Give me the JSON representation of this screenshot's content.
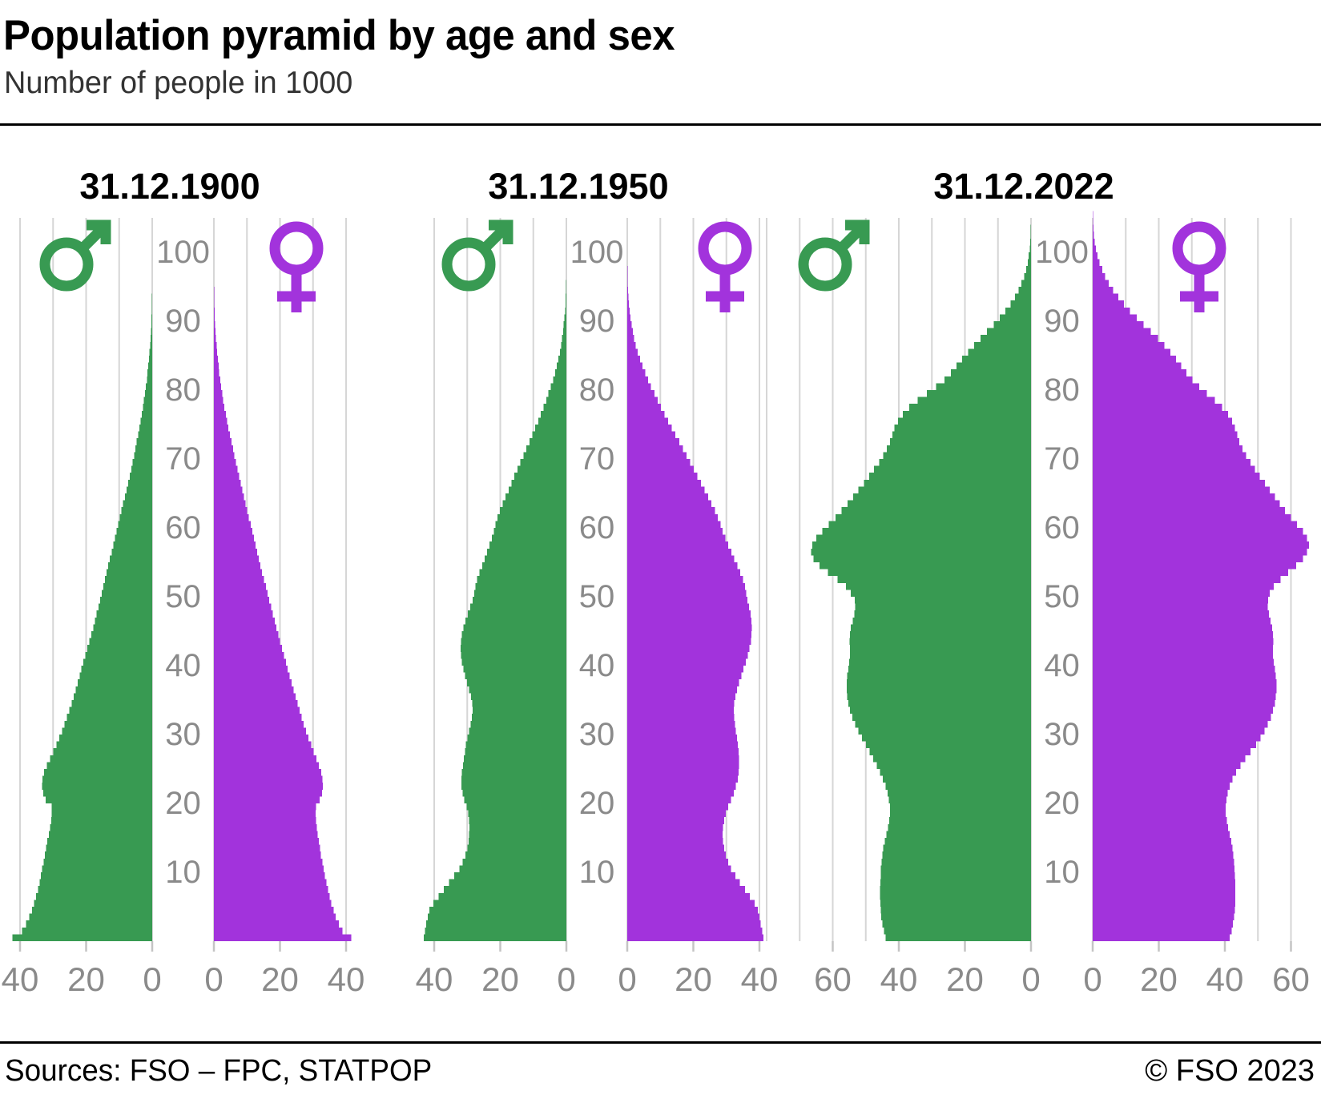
{
  "header": {
    "title": "Population pyramid by age and sex",
    "subtitle": "Number of people in 1000"
  },
  "footer": {
    "sources": "Sources: FSO – FPC, STATPOP",
    "copyright": "© FSO 2023"
  },
  "colors": {
    "male": "#389A52",
    "female": "#A233DC",
    "axis_label": "#8A8A8A",
    "gridline": "#D6D6D6",
    "tick": "#C4C4C4",
    "panel_title": "#000000"
  },
  "icons": {
    "male": "mars-symbol",
    "female": "venus-symbol"
  },
  "chart_data": [
    {
      "type": "bar",
      "subtype": "population-pyramid",
      "title": "31.12.1900",
      "unit": "thousands of people per single year of age",
      "age_range": [
        0,
        105
      ],
      "age_axis_ticks": [
        10,
        20,
        30,
        40,
        50,
        60,
        70,
        80,
        90,
        100
      ],
      "x_ticks_male": [
        40,
        20,
        0
      ],
      "x_ticks_female": [
        0,
        20,
        40
      ],
      "grid_step": 10,
      "grid_max_male": 40,
      "grid_max_female": 40,
      "series": [
        {
          "name": "male",
          "values": [
            42.3,
            39.4,
            38.2,
            37.2,
            36.4,
            35.7,
            35.1,
            34.6,
            34.1,
            33.7,
            33.3,
            32.9,
            32.5,
            32.1,
            31.7,
            31.3,
            30.9,
            30.6,
            30.4,
            30.4,
            32.2,
            33.0,
            33.3,
            33.2,
            32.7,
            31.9,
            30.9,
            29.9,
            29.0,
            28.1,
            27.3,
            26.5,
            25.8,
            25.1,
            24.4,
            23.8,
            23.2,
            22.6,
            22.0,
            21.4,
            20.8,
            20.2,
            19.6,
            19.0,
            18.4,
            17.8,
            17.3,
            16.8,
            16.3,
            15.8,
            15.3,
            14.8,
            14.3,
            13.8,
            13.3,
            12.8,
            12.3,
            11.8,
            11.3,
            10.8,
            10.3,
            9.8,
            9.3,
            8.8,
            8.3,
            7.8,
            7.3,
            6.8,
            6.3,
            5.9,
            5.5,
            5.1,
            4.7,
            4.3,
            3.9,
            3.5,
            3.1,
            2.8,
            2.5,
            2.2,
            1.9,
            1.6,
            1.4,
            1.2,
            1.0,
            0.8,
            0.6,
            0.5,
            0.4,
            0.3,
            0.2,
            0.15,
            0.1,
            0.07,
            0.05,
            0.03,
            0.02,
            0.01,
            0.01,
            0,
            0,
            0,
            0,
            0,
            0,
            0
          ]
        },
        {
          "name": "female",
          "values": [
            41.6,
            38.9,
            37.8,
            36.9,
            36.2,
            35.5,
            35.0,
            34.5,
            34.0,
            33.6,
            33.2,
            32.8,
            32.4,
            32.1,
            31.7,
            31.4,
            31.1,
            30.9,
            30.8,
            30.9,
            32.0,
            32.7,
            33.0,
            32.9,
            32.5,
            31.8,
            31.0,
            30.2,
            29.4,
            28.6,
            27.9,
            27.2,
            26.5,
            25.9,
            25.3,
            24.7,
            24.1,
            23.5,
            22.9,
            22.3,
            21.8,
            21.2,
            20.6,
            20.0,
            19.5,
            18.9,
            18.4,
            17.8,
            17.3,
            16.7,
            16.2,
            15.7,
            15.1,
            14.6,
            14.1,
            13.6,
            13.1,
            12.6,
            12.1,
            11.6,
            11.1,
            10.6,
            10.1,
            9.6,
            9.1,
            8.6,
            8.1,
            7.6,
            7.1,
            6.7,
            6.2,
            5.8,
            5.3,
            4.9,
            4.4,
            4.0,
            3.6,
            3.2,
            2.8,
            2.5,
            2.2,
            1.9,
            1.6,
            1.4,
            1.2,
            1.0,
            0.8,
            0.65,
            0.5,
            0.4,
            0.3,
            0.2,
            0.15,
            0.1,
            0.07,
            0.05,
            0.03,
            0.02,
            0.01,
            0.01,
            0,
            0,
            0,
            0,
            0,
            0
          ]
        }
      ]
    },
    {
      "type": "bar",
      "subtype": "population-pyramid",
      "title": "31.12.1950",
      "unit": "thousands of people per single year of age",
      "age_range": [
        0,
        105
      ],
      "age_axis_ticks": [
        10,
        20,
        30,
        40,
        50,
        60,
        70,
        80,
        90,
        100
      ],
      "x_ticks_male": [
        40,
        20,
        0
      ],
      "x_ticks_female": [
        0,
        20,
        40
      ],
      "grid_step": 10,
      "grid_max_male": 40,
      "grid_max_female": 40,
      "series": [
        {
          "name": "male",
          "values": [
            43.2,
            42.8,
            42.4,
            42.0,
            41.5,
            40.3,
            38.7,
            37.1,
            35.5,
            33.9,
            32.4,
            31.4,
            30.6,
            30.0,
            29.6,
            29.4,
            29.3,
            29.4,
            29.7,
            30.2,
            30.9,
            31.4,
            31.7,
            31.8,
            31.6,
            31.3,
            31.0,
            30.7,
            30.4,
            30.0,
            29.5,
            29.0,
            28.6,
            28.4,
            28.5,
            28.9,
            29.5,
            30.1,
            30.7,
            31.2,
            31.6,
            31.9,
            32.0,
            31.9,
            31.6,
            31.1,
            30.5,
            29.8,
            29.1,
            28.4,
            27.9,
            27.5,
            27.0,
            26.3,
            25.5,
            24.7,
            24.0,
            23.3,
            22.6,
            22.0,
            21.5,
            20.9,
            20.1,
            19.3,
            18.4,
            17.5,
            16.6,
            15.7,
            14.8,
            13.9,
            13.0,
            12.1,
            11.2,
            10.3,
            9.4,
            8.5,
            7.7,
            6.9,
            6.1,
            5.4,
            4.7,
            4.0,
            3.4,
            2.9,
            2.4,
            2.0,
            1.6,
            1.3,
            1.0,
            0.8,
            0.6,
            0.4,
            0.3,
            0.2,
            0.13,
            0.08,
            0.05,
            0.03,
            0.02,
            0.01,
            0,
            0,
            0,
            0,
            0,
            0
          ]
        },
        {
          "name": "female",
          "values": [
            41.2,
            40.8,
            40.4,
            40.0,
            39.5,
            38.5,
            37.1,
            35.6,
            34.1,
            32.7,
            31.4,
            30.5,
            29.8,
            29.3,
            29.0,
            28.9,
            29.0,
            29.3,
            29.8,
            30.5,
            31.4,
            32.2,
            32.9,
            33.4,
            33.7,
            33.8,
            33.8,
            33.7,
            33.5,
            33.2,
            32.9,
            32.6,
            32.4,
            32.3,
            32.4,
            32.7,
            33.2,
            33.8,
            34.5,
            35.2,
            35.9,
            36.5,
            37.0,
            37.4,
            37.6,
            37.7,
            37.6,
            37.3,
            36.9,
            36.4,
            36.0,
            35.6,
            35.0,
            34.2,
            33.3,
            32.4,
            31.5,
            30.6,
            29.7,
            28.9,
            28.2,
            27.4,
            26.5,
            25.5,
            24.5,
            23.4,
            22.3,
            21.2,
            20.1,
            19.0,
            17.9,
            16.8,
            15.7,
            14.6,
            13.5,
            12.4,
            11.3,
            10.2,
            9.2,
            8.2,
            7.2,
            6.3,
            5.4,
            4.6,
            3.9,
            3.2,
            2.6,
            2.1,
            1.7,
            1.3,
            1.0,
            0.7,
            0.5,
            0.35,
            0.25,
            0.15,
            0.1,
            0.06,
            0.03,
            0.02,
            0.01,
            0,
            0,
            0,
            0,
            0
          ]
        }
      ]
    },
    {
      "type": "bar",
      "subtype": "population-pyramid",
      "title": "31.12.2022",
      "unit": "thousands of people per single year of age",
      "age_range": [
        0,
        105
      ],
      "age_axis_ticks": [
        10,
        20,
        30,
        40,
        50,
        60,
        70,
        80,
        90,
        100
      ],
      "x_ticks_male": [
        60,
        40,
        20,
        0
      ],
      "x_ticks_female": [
        0,
        20,
        40,
        60
      ],
      "grid_step": 10,
      "grid_max_male": 80,
      "grid_max_female": 60,
      "series": [
        {
          "name": "male",
          "values": [
            44.0,
            44.5,
            45.0,
            45.3,
            45.5,
            45.6,
            45.7,
            45.7,
            45.6,
            45.5,
            45.4,
            45.2,
            45.0,
            44.7,
            44.3,
            43.8,
            43.3,
            42.9,
            42.7,
            42.7,
            43.0,
            43.4,
            44.0,
            44.8,
            45.7,
            46.7,
            47.8,
            48.9,
            50.0,
            51.1,
            52.2,
            53.2,
            54.1,
            54.8,
            55.3,
            55.6,
            55.8,
            55.8,
            55.6,
            55.3,
            55.0,
            54.8,
            54.8,
            54.9,
            54.8,
            54.5,
            54.0,
            53.5,
            53.2,
            53.3,
            54.5,
            56.0,
            58.5,
            61.5,
            64.0,
            65.8,
            66.5,
            66.2,
            65.0,
            63.2,
            61.2,
            59.2,
            57.3,
            55.5,
            53.8,
            52.2,
            50.6,
            49.0,
            47.5,
            46.0,
            44.7,
            43.6,
            42.7,
            42.0,
            41.3,
            40.3,
            38.8,
            36.8,
            34.3,
            31.5,
            28.7,
            26.2,
            24.2,
            22.5,
            20.8,
            19.0,
            17.2,
            15.3,
            13.3,
            11.3,
            9.4,
            7.7,
            6.2,
            4.9,
            3.8,
            2.9,
            2.1,
            1.5,
            1.0,
            0.7,
            0.4,
            0.25,
            0.15,
            0.08,
            0.04,
            0.02
          ]
        },
        {
          "name": "female",
          "values": [
            41.5,
            42.0,
            42.4,
            42.8,
            43.0,
            43.1,
            43.2,
            43.2,
            43.1,
            43.0,
            42.9,
            42.8,
            42.6,
            42.3,
            41.9,
            41.5,
            41.0,
            40.6,
            40.3,
            40.3,
            40.5,
            40.9,
            41.5,
            42.3,
            43.4,
            44.7,
            46.2,
            47.8,
            49.4,
            50.8,
            52.0,
            53.0,
            53.9,
            54.6,
            55.1,
            55.4,
            55.6,
            55.6,
            55.4,
            55.1,
            54.8,
            54.6,
            54.6,
            54.7,
            54.6,
            54.3,
            53.8,
            53.3,
            53.0,
            53.1,
            53.6,
            54.8,
            56.8,
            59.2,
            61.6,
            63.6,
            64.9,
            65.5,
            64.9,
            63.6,
            61.8,
            60.0,
            58.2,
            56.6,
            55.1,
            53.6,
            52.1,
            50.6,
            49.1,
            47.7,
            46.4,
            45.3,
            44.4,
            43.7,
            43.0,
            42.2,
            41.0,
            39.2,
            37.0,
            34.6,
            32.2,
            30.2,
            28.4,
            26.8,
            25.2,
            23.5,
            21.7,
            19.7,
            17.6,
            15.4,
            13.3,
            11.3,
            9.4,
            7.7,
            6.2,
            4.9,
            3.8,
            2.9,
            2.1,
            1.5,
            1.0,
            0.65,
            0.4,
            0.22,
            0.12,
            0.06
          ]
        }
      ]
    }
  ]
}
